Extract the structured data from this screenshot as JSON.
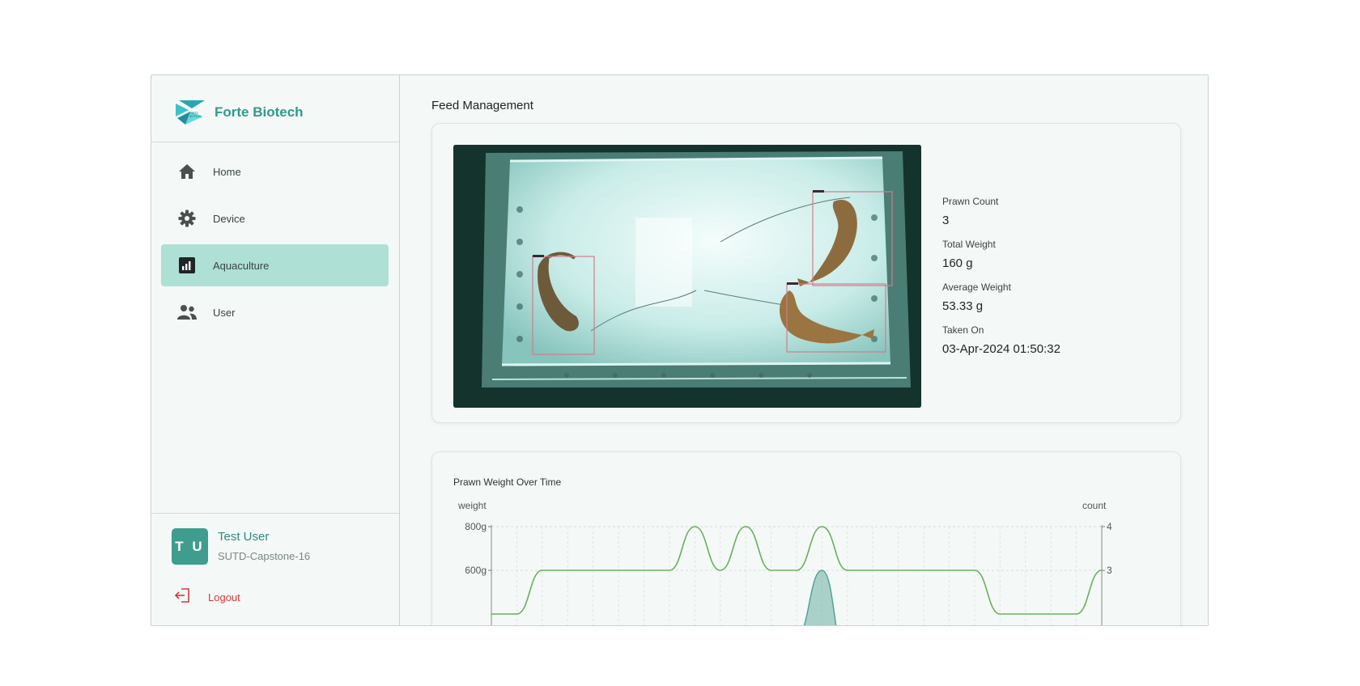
{
  "brand": {
    "name": "Forte Biotech",
    "logo_small_text": "FORTE BIOTECH"
  },
  "sidebar": {
    "items": [
      {
        "label": "Home",
        "icon": "home-icon",
        "active": false
      },
      {
        "label": "Device",
        "icon": "gear-icon",
        "active": false
      },
      {
        "label": "Aquaculture",
        "icon": "bar-chart-icon",
        "active": true
      },
      {
        "label": "User",
        "icon": "users-icon",
        "active": false
      }
    ]
  },
  "user": {
    "initials": "T U",
    "name": "Test User",
    "org": "SUTD-Capstone-16",
    "logout_label": "Logout"
  },
  "page": {
    "title": "Feed Management"
  },
  "stats": [
    {
      "label": "Prawn Count",
      "value": "3"
    },
    {
      "label": "Total Weight",
      "value": "160 g"
    },
    {
      "label": "Average Weight",
      "value": "53.33 g"
    },
    {
      "label": "Taken On",
      "value": "03-Apr-2024 01:50:32"
    }
  ],
  "colors": {
    "accent": "#2f9a8c",
    "active_nav": "#aee0d5",
    "logout": "#d13b3b",
    "line": "#6aaf5c",
    "area": "#4f9f92"
  },
  "chart_data": {
    "type": "line",
    "title": "Prawn Weight Over Time",
    "ylabel_left": "weight",
    "ylabel_right": "count",
    "left_ticks": [
      "800g",
      "600g"
    ],
    "right_ticks": [
      "4",
      "3"
    ],
    "series": [
      {
        "axis": "right",
        "values": [
          2,
          2,
          3,
          3,
          3,
          3,
          3,
          3,
          4,
          3,
          4,
          3,
          3,
          4,
          3,
          3,
          3,
          3,
          3,
          3,
          2,
          2,
          2,
          2,
          3
        ]
      },
      {
        "axis": "left",
        "values": [
          0,
          0,
          0,
          0,
          0,
          0,
          0,
          0,
          0,
          0,
          0,
          0,
          300,
          600,
          0,
          0,
          0,
          0,
          0,
          0,
          0,
          0,
          0,
          0,
          0
        ]
      }
    ],
    "grid": true
  }
}
